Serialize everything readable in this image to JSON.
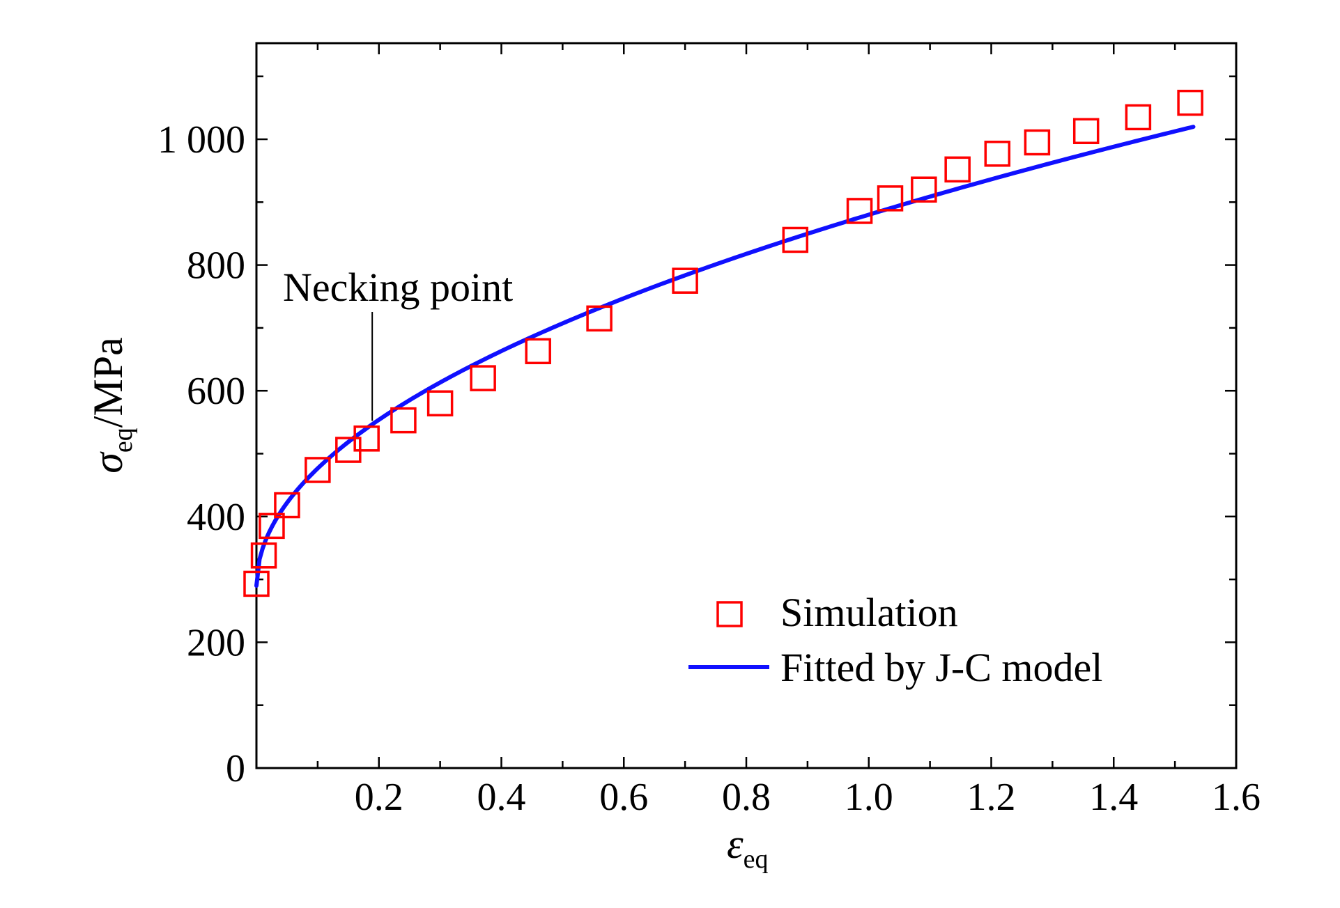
{
  "chart_data": {
    "type": "scatter",
    "xlabel": "ε",
    "xlabel_sub": "eq",
    "ylabel": "σ",
    "ylabel_sub": "eq",
    "ylabel_unit": "/MPa",
    "xlim": [
      0,
      1.6
    ],
    "ylim": [
      0,
      1150
    ],
    "x_ticks": [
      0.2,
      0.4,
      0.6,
      0.8,
      1.0,
      1.2,
      1.4,
      1.6
    ],
    "x_tick_labels": [
      "0.2",
      "0.4",
      "0.6",
      "0.8",
      "1.0",
      "1.2",
      "1.4",
      "1.6"
    ],
    "y_ticks": [
      0,
      200,
      400,
      600,
      800,
      1000
    ],
    "y_tick_labels": [
      "0",
      "200",
      "400",
      "600",
      "800",
      "1 000"
    ],
    "grid": false,
    "legend_position": "bottom-right",
    "series": [
      {
        "name": "Simulation",
        "kind": "scatter",
        "marker": "square",
        "color": "#ff0000",
        "x": [
          0.0,
          0.012,
          0.025,
          0.05,
          0.1,
          0.15,
          0.18,
          0.24,
          0.3,
          0.37,
          0.46,
          0.56,
          0.7,
          0.88,
          0.985,
          1.035,
          1.09,
          1.145,
          1.21,
          1.275,
          1.355,
          1.44,
          1.525
        ],
        "y": [
          293,
          338,
          385,
          418,
          474,
          506,
          524,
          553,
          580,
          620,
          663,
          715,
          775,
          840,
          886,
          906,
          920,
          952,
          977,
          995,
          1013,
          1035,
          1058
        ]
      },
      {
        "name": "Fitted by J-C model",
        "kind": "line",
        "color": "#1010ff",
        "model": {
          "A": 290,
          "B": 590,
          "n": 0.5
        },
        "x_range": [
          0.0,
          1.53
        ]
      }
    ],
    "annotations": [
      {
        "text": "Necking point",
        "x": 0.18,
        "y": 550
      }
    ]
  }
}
